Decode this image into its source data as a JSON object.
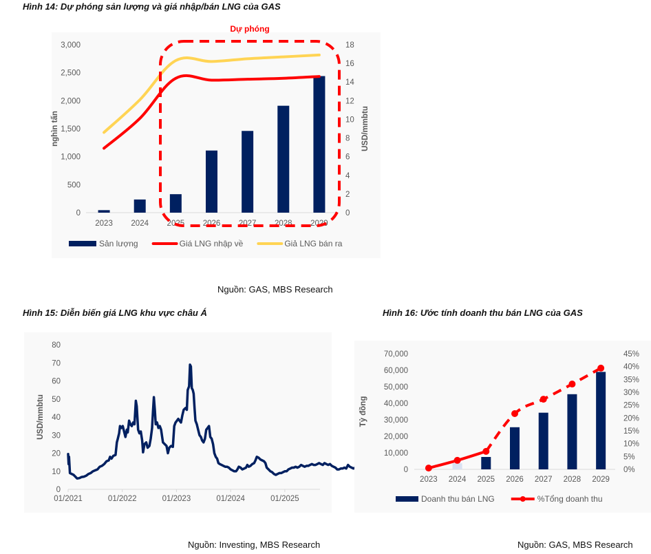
{
  "figures": {
    "fig14": {
      "title": "Hình 14: Dự phóng sản lượng và giá nhập/bán LNG của GAS",
      "source": "Nguồn: GAS, MBS Research"
    },
    "fig15": {
      "title": "Hình 15: Diễn biến giá LNG khu vực châu Á",
      "source": "Nguồn: Investing, MBS Research"
    },
    "fig16": {
      "title": "Hình 16: Ước tính doanh thu bán LNG của GAS",
      "source": "Nguồn: GAS, MBS Research"
    }
  },
  "colors": {
    "navy": "#002060",
    "red": "#ff0000",
    "yellow": "#ffd454",
    "light_bar": "#d9e1f2",
    "grid": "#d9d9d9",
    "panel_bg": "#f9f9f9"
  },
  "chart_data": [
    {
      "id": "fig14",
      "type": "bar+line",
      "title": "Hình 14: Dự phóng sản lượng và giá nhập/bán LNG của GAS",
      "annotation": "Dự phóng",
      "annotation_range": [
        "2025",
        "2029"
      ],
      "categories": [
        "2023",
        "2024",
        "2025",
        "2026",
        "2027",
        "2028",
        "2029"
      ],
      "ylabel": "nghìn tấn",
      "y2label": "USD/mmbtu",
      "ylim": [
        0,
        3000
      ],
      "yticks": [
        "0",
        "500",
        "1,000",
        "1,500",
        "2,000",
        "2,500",
        "3,000"
      ],
      "y2lim": [
        0,
        18
      ],
      "y2ticks": [
        "0",
        "2",
        "4",
        "6",
        "8",
        "10",
        "12",
        "14",
        "16",
        "18"
      ],
      "series": [
        {
          "name": "Sản lượng",
          "type": "bar",
          "axis": "left",
          "values": [
            45,
            235,
            330,
            1110,
            1460,
            1910,
            2440
          ]
        },
        {
          "name": "Giá LNG nhập về",
          "type": "line",
          "axis": "right",
          "values": [
            6.9,
            10.1,
            14.4,
            14.2,
            14.3,
            14.4,
            14.6
          ]
        },
        {
          "name": "Giả LNG bán ra",
          "type": "line",
          "axis": "right",
          "values": [
            8.6,
            12.1,
            16.3,
            16.2,
            16.5,
            16.7,
            16.9
          ]
        }
      ],
      "legend": "bottom"
    },
    {
      "id": "fig15",
      "type": "line",
      "title": "Hình 15: Diễn biến giá LNG khu vực châu Á",
      "ylabel": "USD/mmbtu",
      "ylim": [
        0,
        80
      ],
      "yticks": [
        "0",
        "10",
        "20",
        "30",
        "40",
        "50",
        "60",
        "70",
        "80"
      ],
      "xticks": [
        "01/2021",
        "01/2022",
        "01/2023",
        "01/2024",
        "01/2025"
      ],
      "x_unit": "months since 01/2021",
      "series": [
        {
          "name": "LNG Asia",
          "points": [
            [
              0,
              19.5
            ],
            [
              0.1,
              14
            ],
            [
              0.2,
              18
            ],
            [
              0.4,
              9
            ],
            [
              0.8,
              8.5
            ],
            [
              1.2,
              8
            ],
            [
              1.6,
              7
            ],
            [
              2,
              6
            ],
            [
              2.5,
              6.2
            ],
            [
              3,
              6.8
            ],
            [
              3.5,
              7
            ],
            [
              4,
              7.5
            ],
            [
              4.5,
              8.5
            ],
            [
              5,
              9
            ],
            [
              5.5,
              10
            ],
            [
              6,
              10.5
            ],
            [
              6.5,
              11
            ],
            [
              7,
              12.5
            ],
            [
              7.5,
              13
            ],
            [
              8,
              14
            ],
            [
              8.5,
              15.5
            ],
            [
              9,
              16
            ],
            [
              9.3,
              18
            ],
            [
              9.6,
              17
            ],
            [
              10,
              18.5
            ],
            [
              10.5,
              19
            ],
            [
              10.8,
              26
            ],
            [
              11,
              28
            ],
            [
              11.3,
              31
            ],
            [
              11.5,
              35
            ],
            [
              11.8,
              34
            ],
            [
              12.1,
              35
            ],
            [
              12.4,
              32
            ],
            [
              12.7,
              29
            ],
            [
              13,
              33
            ],
            [
              13.2,
              31.5
            ],
            [
              13.5,
              38
            ],
            [
              13.8,
              36
            ],
            [
              14.1,
              35
            ],
            [
              14.4,
              37
            ],
            [
              14.7,
              36
            ],
            [
              15,
              49
            ],
            [
              15.2,
              46
            ],
            [
              15.5,
              33
            ],
            [
              15.8,
              31
            ],
            [
              16.1,
              32
            ],
            [
              16.4,
              27
            ],
            [
              16.6,
              20.5
            ],
            [
              16.9,
              25
            ],
            [
              17.3,
              26
            ],
            [
              17.6,
              23
            ],
            [
              18,
              24
            ],
            [
              18.3,
              28
            ],
            [
              18.6,
              34
            ],
            [
              18.8,
              43
            ],
            [
              19,
              51
            ],
            [
              19.2,
              44
            ],
            [
              19.4,
              36
            ],
            [
              19.7,
              37
            ],
            [
              20,
              34
            ],
            [
              20.3,
              35
            ],
            [
              20.6,
              33
            ],
            [
              21,
              26
            ],
            [
              21.4,
              25
            ],
            [
              21.8,
              24
            ],
            [
              22.1,
              20
            ],
            [
              22.4,
              23
            ],
            [
              22.8,
              24
            ],
            [
              23.2,
              23.5
            ],
            [
              23.5,
              35
            ],
            [
              23.8,
              37
            ],
            [
              24.1,
              38
            ],
            [
              24.4,
              39
            ],
            [
              24.7,
              38
            ],
            [
              25,
              37
            ],
            [
              25.3,
              41
            ],
            [
              25.6,
              44
            ],
            [
              26,
              45
            ],
            [
              26.3,
              44
            ],
            [
              26.5,
              55
            ],
            [
              26.8,
              57
            ],
            [
              27,
              69
            ],
            [
              27.2,
              68
            ],
            [
              27.4,
              56
            ],
            [
              27.6,
              55
            ],
            [
              27.8,
              53
            ],
            [
              28,
              45
            ],
            [
              28.2,
              38
            ],
            [
              28.5,
              36
            ],
            [
              28.8,
              33
            ],
            [
              29.1,
              30
            ],
            [
              29.4,
              29
            ],
            [
              29.7,
              27
            ],
            [
              30,
              26
            ],
            [
              30.3,
              28
            ],
            [
              30.6,
              33
            ],
            [
              30.9,
              34
            ],
            [
              31.2,
              35
            ],
            [
              31.5,
              29
            ],
            [
              31.8,
              28
            ],
            [
              32.1,
              25
            ],
            [
              32.4,
              20
            ],
            [
              32.7,
              18
            ],
            [
              33,
              17
            ],
            [
              33.3,
              14.5
            ],
            [
              33.6,
              14
            ],
            [
              34,
              13.5
            ],
            [
              34.4,
              13
            ],
            [
              34.8,
              12.5
            ],
            [
              35.2,
              12.5
            ],
            [
              35.6,
              12
            ],
            [
              36,
              11
            ],
            [
              36.4,
              10.5
            ],
            [
              36.8,
              10
            ],
            [
              37.2,
              10
            ],
            [
              37.5,
              11
            ],
            [
              37.8,
              12.5
            ],
            [
              38.2,
              12
            ],
            [
              38.6,
              11
            ],
            [
              39,
              11.5
            ],
            [
              39.4,
              12
            ],
            [
              39.7,
              13.5
            ],
            [
              40,
              12.5
            ],
            [
              40.4,
              13
            ],
            [
              40.8,
              14
            ],
            [
              41.2,
              14.5
            ],
            [
              41.5,
              16
            ],
            [
              41.8,
              18
            ],
            [
              42.2,
              17.5
            ],
            [
              42.6,
              16.5
            ],
            [
              43,
              16
            ],
            [
              43.4,
              15.5
            ],
            [
              43.7,
              14.5
            ],
            [
              44,
              12
            ],
            [
              44.4,
              11
            ],
            [
              44.8,
              10
            ],
            [
              45.2,
              9.5
            ],
            [
              45.6,
              8.5
            ],
            [
              46,
              8
            ],
            [
              46.4,
              8.5
            ],
            [
              46.8,
              9
            ],
            [
              47.2,
              9
            ],
            [
              47.6,
              9.5
            ],
            [
              48,
              10
            ],
            [
              48.4,
              10
            ],
            [
              48.8,
              11
            ],
            [
              49.2,
              11.5
            ],
            [
              49.6,
              12
            ],
            [
              50,
              12
            ],
            [
              50.4,
              12.5
            ],
            [
              50.8,
              12
            ],
            [
              51.2,
              12.5
            ],
            [
              51.6,
              13.5
            ],
            [
              52,
              13
            ],
            [
              52.4,
              12.5
            ],
            [
              52.8,
              13
            ],
            [
              53.2,
              13
            ],
            [
              53.6,
              13.5
            ],
            [
              54,
              14
            ],
            [
              54.4,
              13.5
            ],
            [
              54.8,
              13.5
            ],
            [
              55.2,
              14
            ],
            [
              55.6,
              14.5
            ],
            [
              56,
              14
            ],
            [
              56.4,
              13.5
            ],
            [
              56.8,
              14.5
            ],
            [
              57.2,
              14
            ],
            [
              57.6,
              13.5
            ],
            [
              58,
              14
            ],
            [
              58.4,
              13
            ],
            [
              58.8,
              12.5
            ],
            [
              59.2,
              12
            ],
            [
              59.6,
              11
            ],
            [
              60,
              11
            ],
            [
              60.4,
              11.5
            ],
            [
              60.8,
              11.5
            ],
            [
              61.2,
              12
            ],
            [
              61.6,
              11.5
            ],
            [
              62,
              13.5
            ],
            [
              62.4,
              12.5
            ],
            [
              62.8,
              12
            ],
            [
              63.2,
              11.5
            ],
            [
              63.6,
              12
            ],
            [
              64,
              12
            ]
          ]
        }
      ],
      "legend": "none"
    },
    {
      "id": "fig16",
      "type": "bar+line",
      "title": "Hình 16: Ước tính doanh thu bán LNG của GAS",
      "categories": [
        "2023",
        "2024",
        "2025",
        "2026",
        "2027",
        "2028",
        "2029"
      ],
      "ylabel": "Tỷ đồng",
      "ylim": [
        0,
        70000
      ],
      "yticks": [
        "0",
        "10,000",
        "20,000",
        "30,000",
        "40,000",
        "50,000",
        "60,000",
        "70,000"
      ],
      "y2lim": [
        0,
        45
      ],
      "y2ticks": [
        "0%",
        "5%",
        "10%",
        "15%",
        "20%",
        "25%",
        "30%",
        "35%",
        "40%",
        "45%"
      ],
      "series": [
        {
          "name": "Doanh thu bán LNG",
          "type": "bar",
          "axis": "left",
          "values": [
            0,
            3700,
            7500,
            25500,
            34300,
            45500,
            59000
          ]
        },
        {
          "name": "%Tổng doanh thu",
          "type": "line",
          "axis": "right",
          "unit": "%",
          "values": [
            0.5,
            3.5,
            7.0,
            21.7,
            27.3,
            33.2,
            39.4
          ]
        }
      ],
      "legend": "bottom"
    }
  ]
}
